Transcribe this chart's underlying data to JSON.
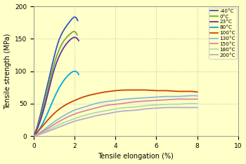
{
  "xlabel": "Tensile elongation (%)",
  "ylabel": "Tensile strength (MPa)",
  "xlim": [
    0,
    10
  ],
  "ylim": [
    0,
    200
  ],
  "xticks": [
    0,
    2,
    4,
    6,
    8,
    10
  ],
  "yticks": [
    0,
    50,
    100,
    150,
    200
  ],
  "background_color": "#ffffc8",
  "curves": [
    {
      "label": "-40°C",
      "color": "#3355bb",
      "points": [
        [
          0,
          0
        ],
        [
          0.3,
          30
        ],
        [
          0.6,
          70
        ],
        [
          0.9,
          110
        ],
        [
          1.2,
          145
        ],
        [
          1.5,
          165
        ],
        [
          1.8,
          178
        ],
        [
          2.05,
          183
        ],
        [
          2.15,
          178
        ]
      ],
      "end_abrupt": true
    },
    {
      "label": "0°C",
      "color": "#77aa33",
      "points": [
        [
          0,
          0
        ],
        [
          0.3,
          25
        ],
        [
          0.6,
          60
        ],
        [
          0.9,
          100
        ],
        [
          1.2,
          130
        ],
        [
          1.5,
          148
        ],
        [
          1.8,
          158
        ],
        [
          2.0,
          161
        ],
        [
          2.12,
          156
        ]
      ],
      "end_abrupt": true
    },
    {
      "label": "23°C",
      "color": "#663399",
      "points": [
        [
          0,
          0
        ],
        [
          0.3,
          22
        ],
        [
          0.6,
          54
        ],
        [
          0.9,
          92
        ],
        [
          1.2,
          120
        ],
        [
          1.5,
          138
        ],
        [
          1.8,
          149
        ],
        [
          2.05,
          152
        ],
        [
          2.2,
          147
        ]
      ],
      "end_abrupt": true
    },
    {
      "label": "80°C",
      "color": "#00aadd",
      "points": [
        [
          0,
          0
        ],
        [
          0.3,
          12
        ],
        [
          0.6,
          30
        ],
        [
          0.9,
          52
        ],
        [
          1.2,
          72
        ],
        [
          1.5,
          87
        ],
        [
          1.8,
          97
        ],
        [
          2.0,
          100
        ],
        [
          2.1,
          99
        ],
        [
          2.2,
          95
        ]
      ],
      "end_abrupt": true
    },
    {
      "label": "100°C",
      "color": "#cc4400",
      "points": [
        [
          0,
          0
        ],
        [
          0.5,
          18
        ],
        [
          1.0,
          35
        ],
        [
          1.5,
          47
        ],
        [
          2.0,
          55
        ],
        [
          2.5,
          61
        ],
        [
          3.0,
          65
        ],
        [
          3.5,
          68
        ],
        [
          4.0,
          70
        ],
        [
          4.5,
          71
        ],
        [
          5.0,
          71
        ],
        [
          5.5,
          71
        ],
        [
          6.0,
          70
        ],
        [
          6.5,
          70
        ],
        [
          7.0,
          69
        ],
        [
          7.5,
          69
        ],
        [
          8.0,
          68
        ]
      ],
      "end_abrupt": false
    },
    {
      "label": "130°C",
      "color": "#88bbdd",
      "points": [
        [
          0,
          0
        ],
        [
          0.5,
          10
        ],
        [
          1.0,
          22
        ],
        [
          1.5,
          32
        ],
        [
          2.0,
          40
        ],
        [
          2.5,
          45
        ],
        [
          3.0,
          50
        ],
        [
          3.5,
          53
        ],
        [
          4.0,
          55
        ],
        [
          4.5,
          57
        ],
        [
          5.0,
          58
        ],
        [
          5.5,
          59
        ],
        [
          6.0,
          60
        ],
        [
          6.5,
          61
        ],
        [
          7.0,
          61
        ],
        [
          7.5,
          62
        ],
        [
          8.0,
          62
        ]
      ],
      "end_abrupt": false
    },
    {
      "label": "150°C",
      "color": "#dd8899",
      "points": [
        [
          0,
          0
        ],
        [
          0.5,
          8
        ],
        [
          1.0,
          18
        ],
        [
          1.5,
          27
        ],
        [
          2.0,
          34
        ],
        [
          2.5,
          39
        ],
        [
          3.0,
          43
        ],
        [
          3.5,
          47
        ],
        [
          4.0,
          49
        ],
        [
          4.5,
          51
        ],
        [
          5.0,
          53
        ],
        [
          5.5,
          54
        ],
        [
          6.0,
          55
        ],
        [
          6.5,
          56
        ],
        [
          7.0,
          57
        ],
        [
          7.5,
          57
        ],
        [
          8.0,
          57
        ]
      ],
      "end_abrupt": false
    },
    {
      "label": "180°C",
      "color": "#aaddaa",
      "points": [
        [
          0,
          0
        ],
        [
          0.5,
          6
        ],
        [
          1.0,
          14
        ],
        [
          1.5,
          21
        ],
        [
          2.0,
          27
        ],
        [
          2.5,
          32
        ],
        [
          3.0,
          36
        ],
        [
          3.5,
          39
        ],
        [
          4.0,
          42
        ],
        [
          4.5,
          44
        ],
        [
          5.0,
          45
        ],
        [
          5.5,
          47
        ],
        [
          6.0,
          48
        ],
        [
          6.5,
          49
        ],
        [
          7.0,
          49
        ],
        [
          7.5,
          50
        ],
        [
          8.0,
          50
        ]
      ],
      "end_abrupt": false
    },
    {
      "label": "200°C",
      "color": "#bbaacc",
      "points": [
        [
          0,
          0
        ],
        [
          0.5,
          5
        ],
        [
          1.0,
          11
        ],
        [
          1.5,
          17
        ],
        [
          2.0,
          23
        ],
        [
          2.5,
          27
        ],
        [
          3.0,
          31
        ],
        [
          3.5,
          34
        ],
        [
          4.0,
          37
        ],
        [
          4.5,
          39
        ],
        [
          5.0,
          40
        ],
        [
          5.5,
          42
        ],
        [
          6.0,
          43
        ],
        [
          6.5,
          44
        ],
        [
          7.0,
          44
        ],
        [
          7.5,
          44
        ],
        [
          8.0,
          44
        ]
      ],
      "end_abrupt": false
    }
  ]
}
